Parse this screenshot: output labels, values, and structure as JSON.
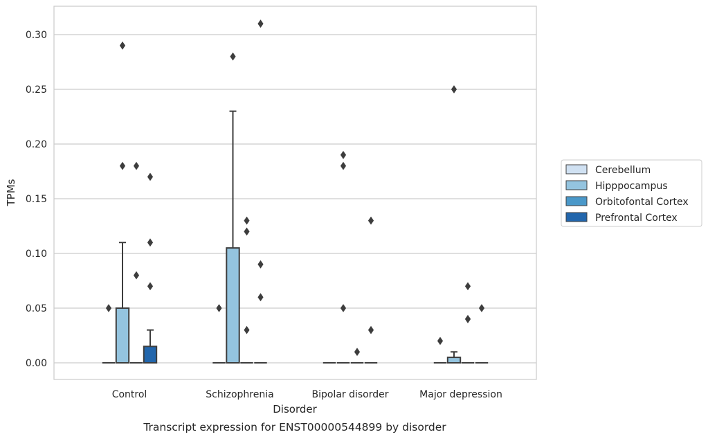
{
  "chart_data": {
    "type": "box",
    "xlabel": "Disorder",
    "ylabel": "TPMs",
    "caption": "Transcript expression for ENST00000544899 by disorder",
    "categories": [
      "Control",
      "Schizophrenia",
      "Bipolar disorder",
      "Major depression"
    ],
    "ylim": [
      -0.015,
      0.325
    ],
    "yticks": [
      0.0,
      0.05,
      0.1,
      0.15,
      0.2,
      0.25,
      0.3
    ],
    "ytick_labels": [
      "0.00",
      "0.05",
      "0.10",
      "0.15",
      "0.20",
      "0.25",
      "0.30"
    ],
    "grid": "horizontal",
    "legend_position": "right",
    "series": [
      {
        "name": "Cerebellum",
        "color": "#d0e1f2",
        "boxes": [
          {
            "q1": 0,
            "median": 0,
            "q3": 0,
            "whislo": 0,
            "whishi": 0,
            "fliers": [
              0.05
            ]
          },
          {
            "q1": 0,
            "median": 0,
            "q3": 0,
            "whislo": 0,
            "whishi": 0,
            "fliers": [
              0.05
            ]
          },
          {
            "q1": 0,
            "median": 0,
            "q3": 0,
            "whislo": 0,
            "whishi": 0,
            "fliers": []
          },
          {
            "q1": 0,
            "median": 0,
            "q3": 0,
            "whislo": 0,
            "whishi": 0,
            "fliers": []
          }
        ]
      },
      {
        "name": "Hipppocampus",
        "color": "#94c4df",
        "boxes": [
          {
            "q1": 0,
            "median": 0,
            "q3": 0.05,
            "whislo": 0,
            "whishi": 0.11,
            "fliers": [
              0.18,
              0.29
            ]
          },
          {
            "q1": 0,
            "median": 0,
            "q3": 0.105,
            "whislo": 0,
            "whishi": 0.23,
            "fliers": [
              0.28
            ]
          },
          {
            "q1": 0,
            "median": 0,
            "q3": 0,
            "whislo": 0,
            "whishi": 0,
            "fliers": [
              0.05,
              0.18,
              0.19
            ]
          },
          {
            "q1": 0,
            "median": 0,
            "q3": 0.005,
            "whislo": 0,
            "whishi": 0.01,
            "fliers": [
              0.25
            ]
          }
        ]
      },
      {
        "name": "Orbitofontal Cortex",
        "color": "#4a98c9",
        "boxes": [
          {
            "q1": 0,
            "median": 0,
            "q3": 0,
            "whislo": 0,
            "whishi": 0,
            "fliers": [
              0.08,
              0.18
            ]
          },
          {
            "q1": 0,
            "median": 0,
            "q3": 0,
            "whislo": 0,
            "whishi": 0,
            "fliers": [
              0.03,
              0.12,
              0.13
            ]
          },
          {
            "q1": 0,
            "median": 0,
            "q3": 0,
            "whislo": 0,
            "whishi": 0,
            "fliers": [
              0.01
            ]
          },
          {
            "q1": 0,
            "median": 0,
            "q3": 0,
            "whislo": 0,
            "whishi": 0,
            "fliers": [
              0.04
            ]
          }
        ]
      },
      {
        "name": "Prefrontal Cortex",
        "color": "#2266ac",
        "boxes": [
          {
            "q1": 0,
            "median": 0,
            "q3": 0.015,
            "whislo": 0,
            "whishi": 0.03,
            "fliers": [
              0.07,
              0.11,
              0.17
            ]
          },
          {
            "q1": 0,
            "median": 0,
            "q3": 0,
            "whislo": 0,
            "whishi": 0,
            "fliers": [
              0.06,
              0.09,
              0.31
            ]
          },
          {
            "q1": 0,
            "median": 0,
            "q3": 0,
            "whislo": 0,
            "whishi": 0,
            "fliers": [
              0.03,
              0.13
            ]
          },
          {
            "q1": 0,
            "median": 0,
            "q3": 0,
            "whislo": 0,
            "whishi": 0,
            "fliers": [
              0.05
            ]
          }
        ]
      }
    ],
    "extra_fliers": [
      {
        "category": 3,
        "value": 0.02
      },
      {
        "category": 3,
        "value": 0.04
      },
      {
        "category": 3,
        "value": 0.07
      }
    ]
  }
}
